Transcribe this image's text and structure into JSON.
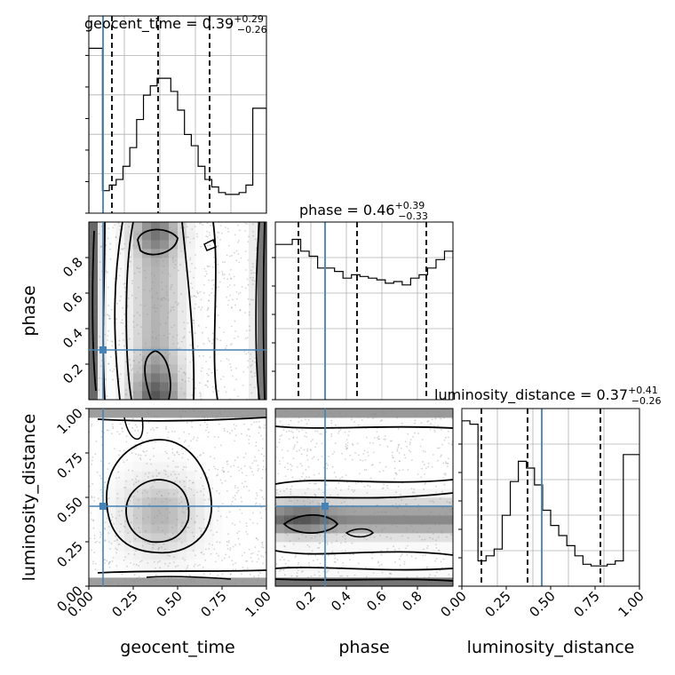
{
  "chart_data": {
    "type": "corner",
    "parameters": [
      "geocent_time",
      "phase",
      "luminosity_distance"
    ],
    "truth": {
      "geocent_time": 0.08,
      "phase": 0.28,
      "luminosity_distance": 0.45
    },
    "titles": [
      {
        "param": "geocent_time",
        "prefix": "geocent_time = ",
        "median": "0.39",
        "plus": "+0.29",
        "minus": "−0.26"
      },
      {
        "param": "phase",
        "prefix": "phase = ",
        "median": "0.46",
        "plus": "+0.39",
        "minus": "−0.33"
      },
      {
        "param": "luminosity_distance",
        "prefix": "luminosity_distance = ",
        "median": "0.37",
        "plus": "+0.41",
        "minus": "−0.26"
      }
    ],
    "quantiles": {
      "geocent_time": [
        0.13,
        0.39,
        0.68
      ],
      "phase": [
        0.13,
        0.46,
        0.85
      ],
      "luminosity_distance": [
        0.11,
        0.37,
        0.78
      ]
    },
    "hist_geocent_time": {
      "range": [
        0.0,
        1.0
      ],
      "values": [
        0.88,
        0.88,
        0.12,
        0.15,
        0.18,
        0.25,
        0.35,
        0.5,
        0.63,
        0.68,
        0.72,
        0.72,
        0.65,
        0.55,
        0.42,
        0.36,
        0.25,
        0.18,
        0.14,
        0.11,
        0.1,
        0.1,
        0.11,
        0.15,
        0.56,
        0.56
      ]
    },
    "hist_phase": {
      "range": [
        0.0,
        1.0
      ],
      "values": [
        0.92,
        0.92,
        0.95,
        0.88,
        0.85,
        0.78,
        0.78,
        0.76,
        0.72,
        0.74,
        0.73,
        0.72,
        0.71,
        0.69,
        0.7,
        0.68,
        0.72,
        0.74,
        0.78,
        0.83,
        0.88
      ]
    },
    "hist_luminosity_distance": {
      "range": [
        0.0,
        1.0
      ],
      "values": [
        0.98,
        0.96,
        0.15,
        0.18,
        0.22,
        0.42,
        0.62,
        0.74,
        0.7,
        0.6,
        0.45,
        0.36,
        0.3,
        0.24,
        0.18,
        0.13,
        0.12,
        0.12,
        0.13,
        0.15,
        0.78,
        0.78
      ]
    },
    "axis_ticks": {
      "geocent_time": [
        "0.00",
        "0.25",
        "0.50",
        "0.75",
        "1.00"
      ],
      "phase": [
        "0.2",
        "0.4",
        "0.6",
        "0.8"
      ],
      "luminosity_distance": [
        "0.00",
        "0.25",
        "0.50",
        "0.75",
        "1.00"
      ]
    },
    "xlabels": [
      "geocent_time",
      "phase",
      "luminosity_distance"
    ],
    "ylabels": [
      "phase",
      "luminosity_distance"
    ],
    "grid": true,
    "colors": {
      "truth": "#4682b4",
      "line": "#000000",
      "grid": "#b0b0b0",
      "points": "#888888"
    }
  }
}
